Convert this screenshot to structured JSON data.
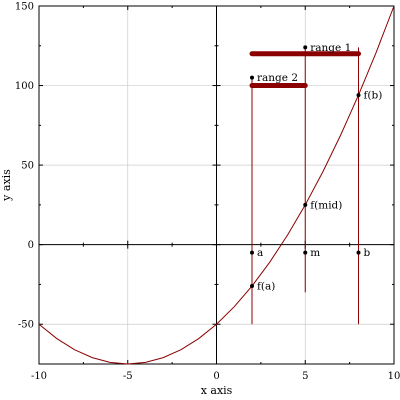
{
  "chart_data": {
    "type": "line",
    "xlabel": "x axis",
    "ylabel": "y axis",
    "xlim": [
      -10,
      10
    ],
    "ylim": [
      -75,
      150
    ],
    "x_ticks": [
      -10,
      -5,
      0,
      5,
      10
    ],
    "y_ticks": [
      -50,
      0,
      50,
      100,
      150
    ],
    "grid": true,
    "series": [
      {
        "x": [
          -10,
          -9,
          -8,
          -7,
          -6,
          -5,
          -4,
          -3,
          -2,
          -1,
          0,
          1,
          2,
          3,
          4,
          5,
          6,
          7,
          8,
          9,
          10
        ],
        "y": [
          -50,
          -59,
          -66,
          -71,
          -74,
          -75,
          -74,
          -71,
          -66,
          -59,
          -50,
          -39,
          -26,
          -11,
          6,
          25,
          46,
          69,
          94,
          121,
          150
        ],
        "color": "#8b0000"
      }
    ],
    "vertical_lines": [
      {
        "x": 2,
        "y_from": -50,
        "y_to": 105
      },
      {
        "x": 5,
        "y_from": -30,
        "y_to": 124
      },
      {
        "x": 8,
        "y_from": -50,
        "y_to": 124
      }
    ],
    "ranges": [
      {
        "label": "range 1",
        "x_from": 2,
        "x_to": 8,
        "y": 120,
        "label_x": 5,
        "label_y": 124
      },
      {
        "label": "range 2",
        "x_from": 2,
        "x_to": 5,
        "y": 100,
        "label_x": 2,
        "label_y": 105
      }
    ],
    "points": [
      {
        "label": "a",
        "x": 2,
        "y": -5
      },
      {
        "label": "m",
        "x": 5,
        "y": -5
      },
      {
        "label": "b",
        "x": 8,
        "y": -5
      },
      {
        "label": "f(a)",
        "x": 2,
        "y": -26
      },
      {
        "label": "f(mid)",
        "x": 5,
        "y": 25
      },
      {
        "label": "f(b)",
        "x": 8,
        "y": 94
      }
    ],
    "colors": {
      "curve": "#8b0000",
      "range_bar": "#8b0000",
      "axes": "#000000",
      "grid": "#cccccc"
    }
  }
}
